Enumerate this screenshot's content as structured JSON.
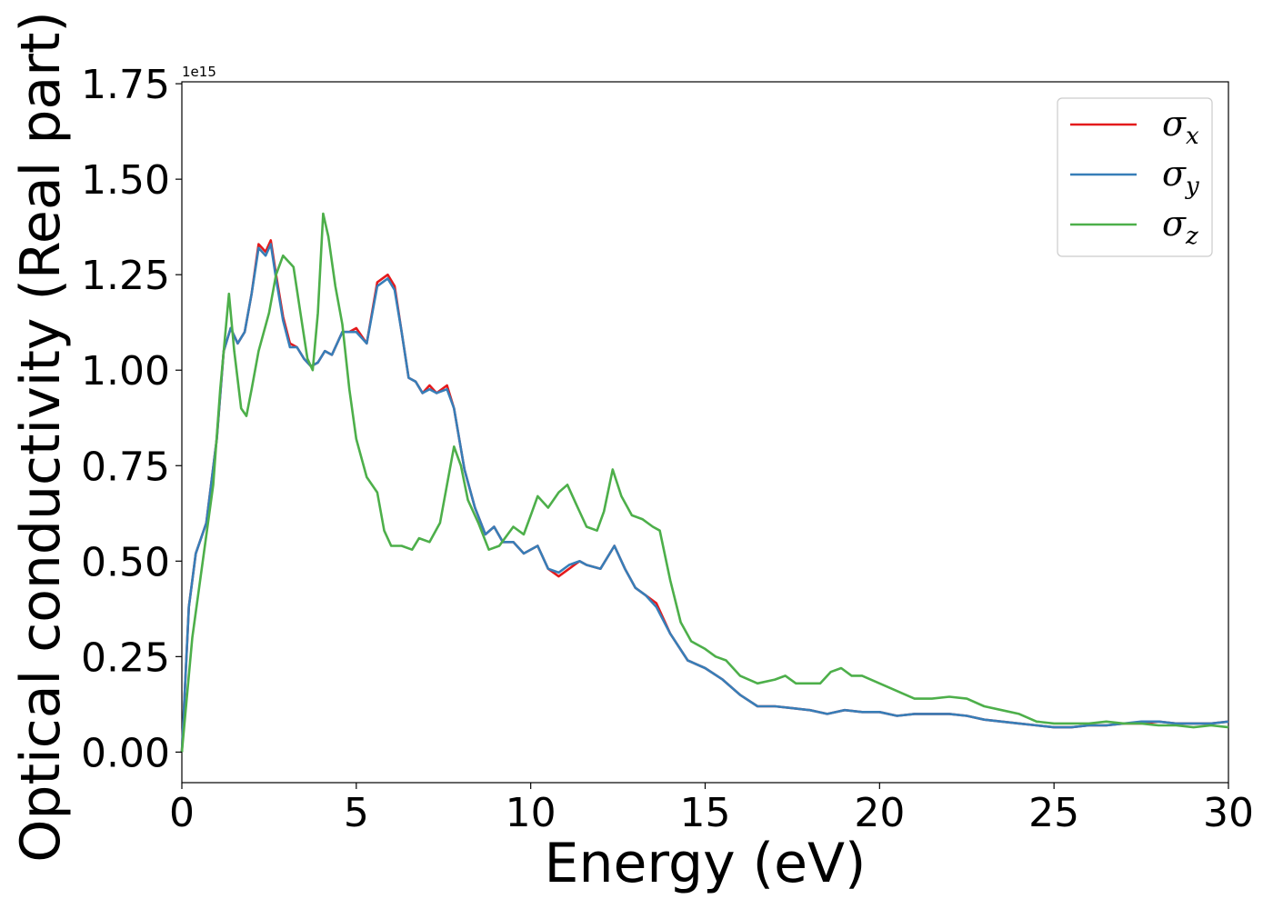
{
  "chart_data": {
    "type": "line",
    "title": "",
    "xlabel": "Energy (eV)",
    "ylabel": "Optical conductivity (Real part)",
    "y_offset_label": "1e15",
    "xlim": [
      0,
      30
    ],
    "ylim": [
      -0.08,
      1.755
    ],
    "xticks": [
      0,
      5,
      10,
      15,
      20,
      25,
      30
    ],
    "xtick_labels": [
      "0",
      "5",
      "10",
      "15",
      "20",
      "25",
      "30"
    ],
    "yticks": [
      0,
      0.25,
      0.5,
      0.75,
      1.0,
      1.25,
      1.5,
      1.75
    ],
    "ytick_labels": [
      "0.00",
      "0.25",
      "0.50",
      "0.75",
      "1.00",
      "1.25",
      "1.50",
      "1.75"
    ],
    "grid": false,
    "legend_position": "top-right",
    "series": [
      {
        "name": "σx",
        "legend_base": "σ",
        "legend_sub": "x",
        "color": "#e41a1c",
        "points": [
          [
            0,
            0
          ],
          [
            0.2,
            0.38
          ],
          [
            0.4,
            0.52
          ],
          [
            0.7,
            0.6
          ],
          [
            1.0,
            0.82
          ],
          [
            1.2,
            1.05
          ],
          [
            1.4,
            1.11
          ],
          [
            1.6,
            1.07
          ],
          [
            1.8,
            1.1
          ],
          [
            2.0,
            1.2
          ],
          [
            2.2,
            1.33
          ],
          [
            2.4,
            1.31
          ],
          [
            2.55,
            1.34
          ],
          [
            2.7,
            1.25
          ],
          [
            2.9,
            1.14
          ],
          [
            3.1,
            1.07
          ],
          [
            3.3,
            1.06
          ],
          [
            3.5,
            1.03
          ],
          [
            3.7,
            1.01
          ],
          [
            3.9,
            1.02
          ],
          [
            4.1,
            1.05
          ],
          [
            4.3,
            1.04
          ],
          [
            4.6,
            1.1
          ],
          [
            4.8,
            1.1
          ],
          [
            5.0,
            1.11
          ],
          [
            5.3,
            1.07
          ],
          [
            5.6,
            1.23
          ],
          [
            5.9,
            1.25
          ],
          [
            6.1,
            1.22
          ],
          [
            6.3,
            1.1
          ],
          [
            6.5,
            0.98
          ],
          [
            6.7,
            0.97
          ],
          [
            6.9,
            0.94
          ],
          [
            7.1,
            0.96
          ],
          [
            7.3,
            0.94
          ],
          [
            7.6,
            0.96
          ],
          [
            7.8,
            0.9
          ],
          [
            8.1,
            0.74
          ],
          [
            8.4,
            0.64
          ],
          [
            8.7,
            0.57
          ],
          [
            8.95,
            0.59
          ],
          [
            9.2,
            0.55
          ],
          [
            9.5,
            0.55
          ],
          [
            9.8,
            0.52
          ],
          [
            10.2,
            0.54
          ],
          [
            10.5,
            0.48
          ],
          [
            10.8,
            0.46
          ],
          [
            11.1,
            0.48
          ],
          [
            11.4,
            0.5
          ],
          [
            11.6,
            0.49
          ],
          [
            12.0,
            0.48
          ],
          [
            12.4,
            0.54
          ],
          [
            12.7,
            0.48
          ],
          [
            13.0,
            0.43
          ],
          [
            13.3,
            0.41
          ],
          [
            13.6,
            0.39
          ],
          [
            14.0,
            0.31
          ],
          [
            14.5,
            0.24
          ],
          [
            15.0,
            0.22
          ],
          [
            15.5,
            0.19
          ],
          [
            16.0,
            0.15
          ],
          [
            16.5,
            0.12
          ],
          [
            17.0,
            0.12
          ],
          [
            17.5,
            0.115
          ],
          [
            18.0,
            0.11
          ],
          [
            18.5,
            0.1
          ],
          [
            19.0,
            0.11
          ],
          [
            19.5,
            0.105
          ],
          [
            20.0,
            0.105
          ],
          [
            20.5,
            0.095
          ],
          [
            21.0,
            0.1
          ],
          [
            21.5,
            0.1
          ],
          [
            22.0,
            0.1
          ],
          [
            22.5,
            0.095
          ],
          [
            23.0,
            0.085
          ],
          [
            23.5,
            0.08
          ],
          [
            24.0,
            0.075
          ],
          [
            24.5,
            0.07
          ],
          [
            25.0,
            0.065
          ],
          [
            25.5,
            0.065
          ],
          [
            26.0,
            0.07
          ],
          [
            26.5,
            0.07
          ],
          [
            27.0,
            0.075
          ],
          [
            27.5,
            0.075
          ],
          [
            28.0,
            0.08
          ],
          [
            28.5,
            0.075
          ],
          [
            29.0,
            0.075
          ],
          [
            29.5,
            0.075
          ],
          [
            30.0,
            0.08
          ]
        ]
      },
      {
        "name": "σy",
        "legend_base": "σ",
        "legend_sub": "y",
        "color": "#377eb8",
        "points": [
          [
            0,
            0
          ],
          [
            0.2,
            0.38
          ],
          [
            0.4,
            0.52
          ],
          [
            0.7,
            0.6
          ],
          [
            1.0,
            0.82
          ],
          [
            1.2,
            1.05
          ],
          [
            1.4,
            1.11
          ],
          [
            1.6,
            1.07
          ],
          [
            1.8,
            1.1
          ],
          [
            2.0,
            1.2
          ],
          [
            2.2,
            1.32
          ],
          [
            2.4,
            1.3
          ],
          [
            2.55,
            1.33
          ],
          [
            2.7,
            1.24
          ],
          [
            2.9,
            1.13
          ],
          [
            3.1,
            1.06
          ],
          [
            3.3,
            1.06
          ],
          [
            3.5,
            1.03
          ],
          [
            3.7,
            1.01
          ],
          [
            3.9,
            1.02
          ],
          [
            4.1,
            1.05
          ],
          [
            4.3,
            1.04
          ],
          [
            4.6,
            1.1
          ],
          [
            4.8,
            1.1
          ],
          [
            5.0,
            1.1
          ],
          [
            5.3,
            1.07
          ],
          [
            5.6,
            1.22
          ],
          [
            5.9,
            1.24
          ],
          [
            6.1,
            1.21
          ],
          [
            6.3,
            1.1
          ],
          [
            6.5,
            0.98
          ],
          [
            6.7,
            0.97
          ],
          [
            6.9,
            0.94
          ],
          [
            7.1,
            0.95
          ],
          [
            7.3,
            0.94
          ],
          [
            7.6,
            0.95
          ],
          [
            7.8,
            0.9
          ],
          [
            8.1,
            0.74
          ],
          [
            8.4,
            0.64
          ],
          [
            8.7,
            0.57
          ],
          [
            8.95,
            0.59
          ],
          [
            9.2,
            0.55
          ],
          [
            9.5,
            0.55
          ],
          [
            9.8,
            0.52
          ],
          [
            10.2,
            0.54
          ],
          [
            10.5,
            0.48
          ],
          [
            10.8,
            0.47
          ],
          [
            11.1,
            0.49
          ],
          [
            11.4,
            0.5
          ],
          [
            11.6,
            0.49
          ],
          [
            12.0,
            0.48
          ],
          [
            12.4,
            0.54
          ],
          [
            12.7,
            0.48
          ],
          [
            13.0,
            0.43
          ],
          [
            13.3,
            0.41
          ],
          [
            13.6,
            0.38
          ],
          [
            14.0,
            0.31
          ],
          [
            14.5,
            0.24
          ],
          [
            15.0,
            0.22
          ],
          [
            15.5,
            0.19
          ],
          [
            16.0,
            0.15
          ],
          [
            16.5,
            0.12
          ],
          [
            17.0,
            0.12
          ],
          [
            17.5,
            0.115
          ],
          [
            18.0,
            0.11
          ],
          [
            18.5,
            0.1
          ],
          [
            19.0,
            0.11
          ],
          [
            19.5,
            0.105
          ],
          [
            20.0,
            0.105
          ],
          [
            20.5,
            0.095
          ],
          [
            21.0,
            0.1
          ],
          [
            21.5,
            0.1
          ],
          [
            22.0,
            0.1
          ],
          [
            22.5,
            0.095
          ],
          [
            23.0,
            0.085
          ],
          [
            23.5,
            0.08
          ],
          [
            24.0,
            0.075
          ],
          [
            24.5,
            0.07
          ],
          [
            25.0,
            0.065
          ],
          [
            25.5,
            0.065
          ],
          [
            26.0,
            0.07
          ],
          [
            26.5,
            0.07
          ],
          [
            27.0,
            0.075
          ],
          [
            27.5,
            0.08
          ],
          [
            28.0,
            0.08
          ],
          [
            28.5,
            0.075
          ],
          [
            29.0,
            0.075
          ],
          [
            29.5,
            0.075
          ],
          [
            30.0,
            0.08
          ]
        ]
      },
      {
        "name": "σz",
        "legend_base": "σ",
        "legend_sub": "z",
        "color": "#4daf4a",
        "points": [
          [
            0,
            0
          ],
          [
            0.3,
            0.3
          ],
          [
            0.6,
            0.5
          ],
          [
            0.9,
            0.7
          ],
          [
            1.1,
            0.95
          ],
          [
            1.35,
            1.2
          ],
          [
            1.5,
            1.05
          ],
          [
            1.7,
            0.9
          ],
          [
            1.85,
            0.88
          ],
          [
            2.0,
            0.95
          ],
          [
            2.2,
            1.05
          ],
          [
            2.5,
            1.15
          ],
          [
            2.7,
            1.25
          ],
          [
            2.9,
            1.3
          ],
          [
            3.2,
            1.27
          ],
          [
            3.4,
            1.15
          ],
          [
            3.6,
            1.03
          ],
          [
            3.75,
            1.0
          ],
          [
            3.9,
            1.15
          ],
          [
            4.05,
            1.41
          ],
          [
            4.2,
            1.35
          ],
          [
            4.4,
            1.22
          ],
          [
            4.6,
            1.12
          ],
          [
            4.8,
            0.95
          ],
          [
            5.0,
            0.82
          ],
          [
            5.3,
            0.72
          ],
          [
            5.6,
            0.68
          ],
          [
            5.8,
            0.58
          ],
          [
            6.0,
            0.54
          ],
          [
            6.3,
            0.54
          ],
          [
            6.6,
            0.53
          ],
          [
            6.8,
            0.56
          ],
          [
            7.1,
            0.55
          ],
          [
            7.4,
            0.6
          ],
          [
            7.6,
            0.7
          ],
          [
            7.8,
            0.8
          ],
          [
            8.0,
            0.75
          ],
          [
            8.2,
            0.66
          ],
          [
            8.5,
            0.6
          ],
          [
            8.8,
            0.53
          ],
          [
            9.1,
            0.54
          ],
          [
            9.5,
            0.59
          ],
          [
            9.8,
            0.57
          ],
          [
            10.0,
            0.62
          ],
          [
            10.2,
            0.67
          ],
          [
            10.5,
            0.64
          ],
          [
            10.8,
            0.68
          ],
          [
            11.05,
            0.7
          ],
          [
            11.3,
            0.65
          ],
          [
            11.6,
            0.59
          ],
          [
            11.9,
            0.58
          ],
          [
            12.1,
            0.63
          ],
          [
            12.35,
            0.74
          ],
          [
            12.6,
            0.67
          ],
          [
            12.9,
            0.62
          ],
          [
            13.2,
            0.61
          ],
          [
            13.5,
            0.59
          ],
          [
            13.7,
            0.58
          ],
          [
            14.0,
            0.45
          ],
          [
            14.3,
            0.34
          ],
          [
            14.6,
            0.29
          ],
          [
            15.0,
            0.27
          ],
          [
            15.3,
            0.25
          ],
          [
            15.6,
            0.24
          ],
          [
            16.0,
            0.2
          ],
          [
            16.5,
            0.18
          ],
          [
            17.0,
            0.19
          ],
          [
            17.3,
            0.2
          ],
          [
            17.6,
            0.18
          ],
          [
            18.0,
            0.18
          ],
          [
            18.3,
            0.18
          ],
          [
            18.6,
            0.21
          ],
          [
            18.9,
            0.22
          ],
          [
            19.2,
            0.2
          ],
          [
            19.5,
            0.2
          ],
          [
            20.0,
            0.18
          ],
          [
            20.5,
            0.16
          ],
          [
            21.0,
            0.14
          ],
          [
            21.5,
            0.14
          ],
          [
            22.0,
            0.145
          ],
          [
            22.5,
            0.14
          ],
          [
            23.0,
            0.12
          ],
          [
            23.5,
            0.11
          ],
          [
            24.0,
            0.1
          ],
          [
            24.5,
            0.08
          ],
          [
            25.0,
            0.075
          ],
          [
            25.5,
            0.075
          ],
          [
            26.0,
            0.075
          ],
          [
            26.5,
            0.08
          ],
          [
            27.0,
            0.075
          ],
          [
            27.5,
            0.075
          ],
          [
            28.0,
            0.07
          ],
          [
            28.5,
            0.07
          ],
          [
            29.0,
            0.065
          ],
          [
            29.5,
            0.07
          ],
          [
            30.0,
            0.065
          ]
        ]
      }
    ]
  }
}
